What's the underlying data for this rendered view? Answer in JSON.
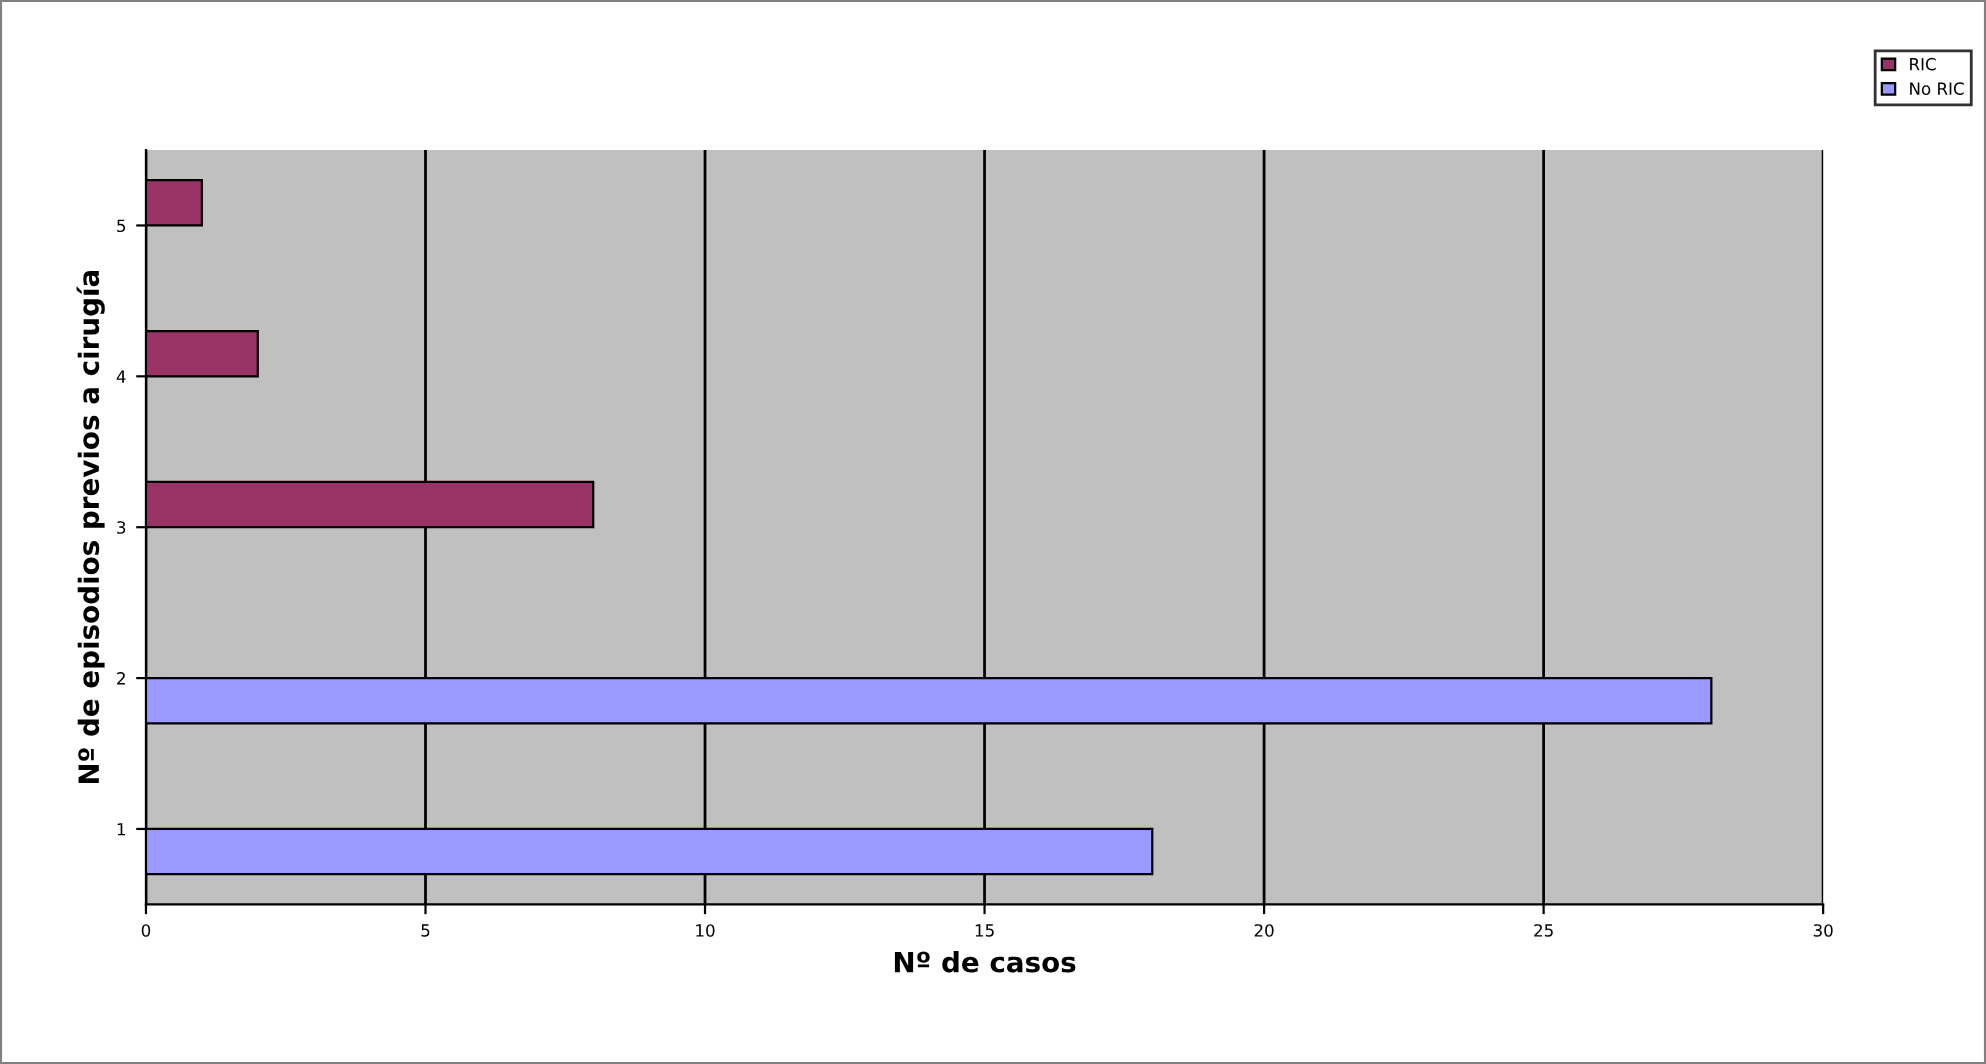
{
  "chart_data": {
    "type": "bar",
    "orientation": "horizontal",
    "xlabel": "Nº de casos",
    "ylabel": "Nº de episodios previos a cirugía",
    "categories": [
      "5",
      "4",
      "3",
      "2",
      "1"
    ],
    "series": [
      {
        "name": "RIC",
        "color": "#993366",
        "values": [
          1,
          2,
          8,
          null,
          null
        ]
      },
      {
        "name": "No RIC",
        "color": "#9999ff",
        "values": [
          null,
          null,
          null,
          28,
          18
        ]
      }
    ],
    "xlim": [
      0,
      30
    ],
    "xticks": [
      0,
      5,
      10,
      15,
      20,
      25,
      30
    ],
    "grid": "x",
    "legend": "top right"
  }
}
